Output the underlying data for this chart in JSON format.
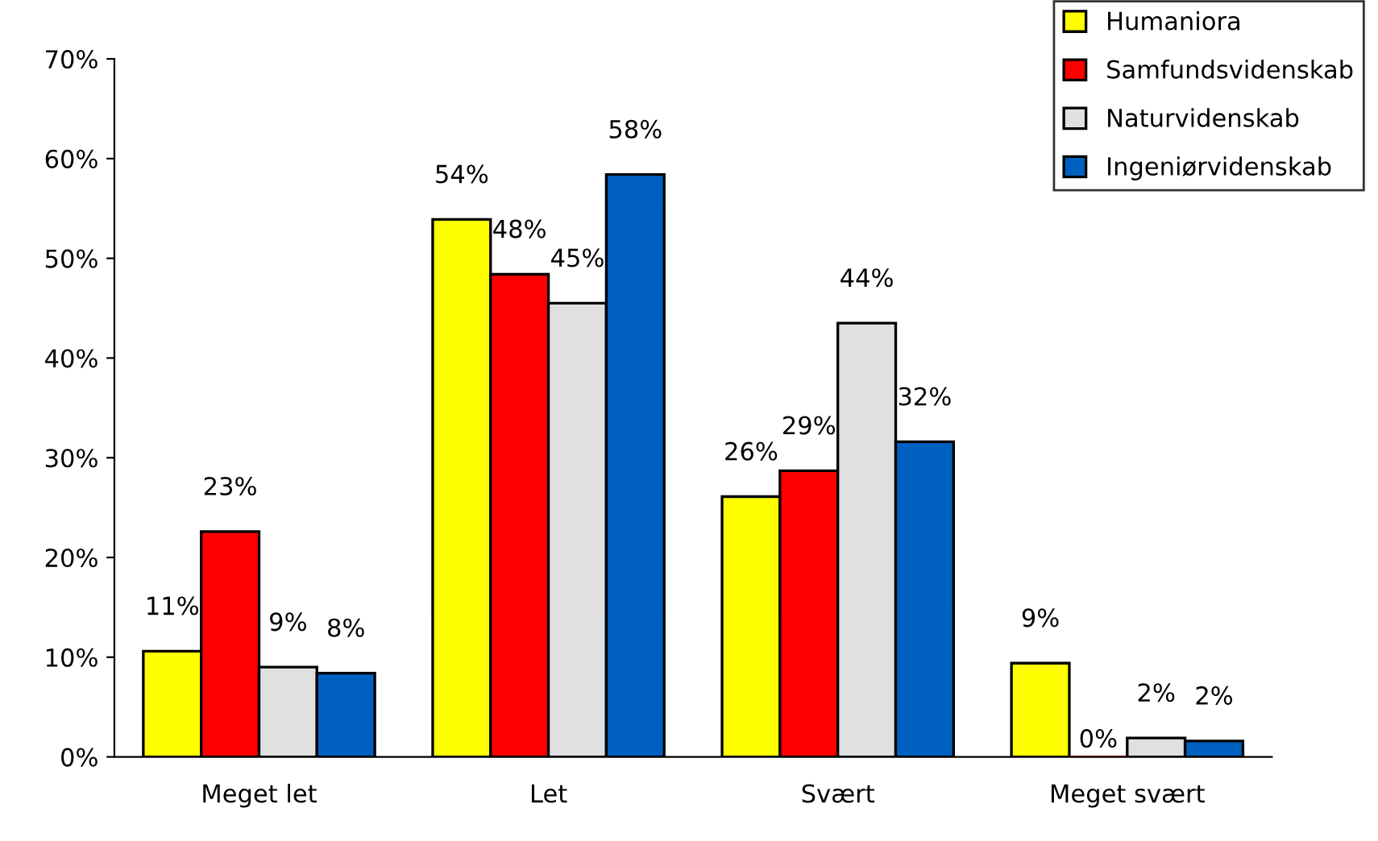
{
  "chart_data": {
    "type": "bar",
    "categories": [
      "Meget let",
      "Let",
      "Svært",
      "Meget svært"
    ],
    "series": [
      {
        "name": "Humaniora",
        "color": "#ffff00",
        "values": [
          10.6,
          53.9,
          26.1,
          9.4
        ],
        "value_labels": [
          "11%",
          "54%",
          "26%",
          "9%"
        ]
      },
      {
        "name": "Samfundsvidenskab",
        "color": "#ff0000",
        "values": [
          22.6,
          48.4,
          28.7,
          0
        ],
        "value_labels": [
          "23%",
          "48%",
          "29%",
          "0%"
        ]
      },
      {
        "name": "Naturvidenskab",
        "color": "#e0e0e0",
        "values": [
          9.0,
          45.5,
          43.5,
          1.9
        ],
        "value_labels": [
          "9%",
          "45%",
          "44%",
          "2%"
        ]
      },
      {
        "name": "Ingeniørvidenskab",
        "color": "#0060c0",
        "values": [
          8.4,
          58.4,
          31.6,
          1.6
        ],
        "value_labels": [
          "8%",
          "58%",
          "32%",
          "2%"
        ]
      }
    ],
    "ylim": [
      0,
      70
    ],
    "yticks": [
      {
        "value": 0,
        "label": "0%"
      },
      {
        "value": 10,
        "label": "10%"
      },
      {
        "value": 20,
        "label": "20%"
      },
      {
        "value": 30,
        "label": "30%"
      },
      {
        "value": 40,
        "label": "40%"
      },
      {
        "value": 50,
        "label": "50%"
      },
      {
        "value": 60,
        "label": "60%"
      },
      {
        "value": 70,
        "label": "70%"
      }
    ],
    "grid": false,
    "legend": "top right"
  }
}
